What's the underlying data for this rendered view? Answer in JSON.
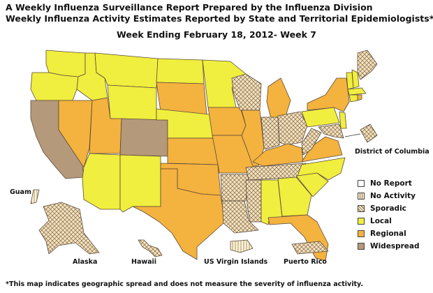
{
  "title_line1": "A Weekly Influenza Surveillance Report Prepared by the Influenza Division",
  "title_line2": "Weekly Influenza Activity Estimates Reported by State and Territorial Epidemiologists*",
  "subtitle": "Week Ending February 18, 2012- Week 7",
  "footnote": "*This map indicates geographic spread and does not measure the severity of influenza activity.",
  "territory_labels": {
    "guam": "Guam",
    "alaska": "Alaska",
    "hawaii": "Hawaii",
    "virgin_islands": "US Virgin Islands",
    "puerto_rico": "Puerto Rico",
    "dc": "District of Columbia"
  },
  "legend": [
    {
      "key": "no_report",
      "label": "No Report",
      "color": "#ffffff"
    },
    {
      "key": "no_activity",
      "label": "No Activity",
      "color": "#fbf3d6"
    },
    {
      "key": "sporadic",
      "label": "Sporadic",
      "color": "#ecd9b0"
    },
    {
      "key": "local",
      "label": "Local",
      "color": "#f0ee3e"
    },
    {
      "key": "regional",
      "label": "Regional",
      "color": "#f4b23e"
    },
    {
      "key": "widespread",
      "label": "Widespread",
      "color": "#b4997a"
    }
  ],
  "activity_by_state": {
    "local": [
      "Washington",
      "Oregon",
      "Idaho",
      "Montana",
      "Wyoming",
      "Arizona",
      "New Mexico",
      "North Dakota",
      "Nebraska",
      "Minnesota",
      "Alabama",
      "Georgia",
      "South Carolina",
      "North Carolina",
      "Pennsylvania",
      "New Jersey",
      "Vermont",
      "New Hampshire",
      "Connecticut",
      "Massachusetts"
    ],
    "regional": [
      "Nevada",
      "Utah",
      "South Dakota",
      "Kansas",
      "Oklahoma",
      "Texas",
      "Iowa",
      "Missouri",
      "Illinois",
      "Michigan",
      "Kentucky",
      "Virginia",
      "New York",
      "Florida",
      "Rhode Island"
    ],
    "widespread": [
      "California",
      "Colorado"
    ],
    "sporadic": [
      "Wisconsin",
      "Indiana",
      "Ohio",
      "West Virginia",
      "Arkansas",
      "Tennessee",
      "Louisiana",
      "Mississippi",
      "Maine",
      "Maryland",
      "Delaware",
      "Alaska",
      "Hawaii",
      "Puerto Rico"
    ],
    "no_activity": [
      "Guam",
      "US Virgin Islands"
    ]
  }
}
